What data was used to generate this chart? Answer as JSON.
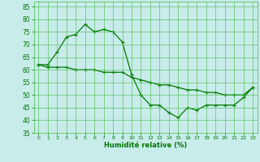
{
  "line1_x": [
    0,
    1,
    2,
    3,
    4,
    5,
    6,
    7,
    8,
    9,
    10,
    11,
    12,
    13,
    14,
    15,
    16,
    17,
    18,
    19,
    20,
    21,
    22,
    23
  ],
  "line1_y": [
    62,
    62,
    67,
    73,
    74,
    78,
    75,
    76,
    75,
    71,
    58,
    50,
    46,
    46,
    43,
    41,
    45,
    44,
    46,
    46,
    46,
    46,
    49,
    53
  ],
  "line2_x": [
    0,
    1,
    2,
    3,
    4,
    5,
    6,
    7,
    8,
    9,
    10,
    11,
    12,
    13,
    14,
    15,
    16,
    17,
    18,
    19,
    20,
    21,
    22,
    23
  ],
  "line2_y": [
    62,
    61,
    61,
    61,
    60,
    60,
    60,
    59,
    59,
    59,
    57,
    56,
    55,
    54,
    54,
    53,
    52,
    52,
    51,
    51,
    50,
    50,
    50,
    53
  ],
  "line_color": "#007700",
  "marker": "+",
  "bg_color": "#c8ecea",
  "grid_color": "#44bb44",
  "xlabel": "Humidité relative (%)",
  "ylim": [
    35,
    87
  ],
  "xlim": [
    -0.5,
    23.5
  ],
  "yticks": [
    35,
    40,
    45,
    50,
    55,
    60,
    65,
    70,
    75,
    80,
    85
  ],
  "xticks": [
    0,
    1,
    2,
    3,
    4,
    5,
    6,
    7,
    8,
    9,
    10,
    11,
    12,
    13,
    14,
    15,
    16,
    17,
    18,
    19,
    20,
    21,
    22,
    23
  ],
  "xlabel_color": "#007700",
  "tick_color": "#007700"
}
